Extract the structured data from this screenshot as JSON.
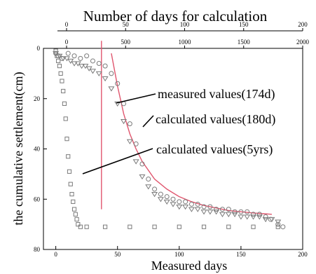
{
  "chart_data": {
    "type": "scatter",
    "title": "",
    "xlabel": "Measured days",
    "ylabel": "the cumulative settlement(cm)",
    "xlim": [
      -10,
      200
    ],
    "ylim": [
      0,
      80
    ],
    "y_inverted": true,
    "x_ticks": [
      "0",
      "50",
      "100",
      "150",
      "200"
    ],
    "y_ticks": [
      "0",
      "20",
      "40",
      "60",
      "80"
    ],
    "top_axes": [
      {
        "label": "Number of days for calculation",
        "ticks": [
          "0",
          "50",
          "100",
          "150",
          "200"
        ],
        "show_title": true
      },
      {
        "label": "",
        "ticks": [
          "0",
          "500",
          "1000",
          "1500",
          "2000"
        ],
        "show_title": false
      }
    ],
    "series": [
      {
        "name": "measured values(174d)",
        "marker": "circle",
        "x": [
          0,
          2,
          5,
          10,
          15,
          20,
          25,
          30,
          35,
          40,
          45,
          50,
          55,
          60,
          65,
          70,
          75,
          80,
          85,
          90,
          95,
          100,
          105,
          110,
          115,
          120,
          125,
          130,
          135,
          140,
          145,
          150,
          155,
          160,
          165,
          170,
          174,
          180,
          184
        ],
        "y": [
          2,
          3,
          4,
          2,
          3,
          4,
          3,
          5,
          6,
          7,
          10,
          14,
          22,
          30,
          38,
          46,
          52,
          56,
          58,
          59,
          60,
          61,
          61,
          62,
          62,
          63,
          63,
          64,
          64,
          64,
          65,
          65,
          65,
          66,
          66,
          67,
          68,
          70,
          71
        ]
      },
      {
        "name": "calculated values(180d)",
        "marker": "triangle-down",
        "x": [
          0,
          3,
          6,
          9,
          12,
          15,
          18,
          21,
          24,
          27,
          30,
          35,
          40,
          45,
          50,
          55,
          60,
          65,
          70,
          75,
          80,
          85,
          90,
          95,
          100,
          105,
          110,
          115,
          120,
          125,
          130,
          135,
          140,
          145,
          150,
          155,
          160,
          165,
          170,
          175,
          180
        ],
        "y": [
          2,
          3,
          4,
          4,
          5,
          6,
          6,
          7,
          7,
          8,
          9,
          10,
          12,
          16,
          22,
          29,
          37,
          45,
          51,
          55,
          58,
          60,
          61,
          62,
          63,
          63,
          64,
          64,
          65,
          65,
          65,
          66,
          66,
          66,
          67,
          67,
          67,
          67,
          68,
          68,
          69
        ]
      },
      {
        "name": "calculated values(5yrs)",
        "marker": "square",
        "x": [
          0,
          1,
          2,
          3,
          4,
          5,
          6,
          7,
          8,
          9,
          10,
          11,
          12,
          13,
          14,
          15,
          16,
          17,
          18,
          20,
          25,
          40,
          60,
          80,
          100,
          120,
          140,
          160,
          180
        ],
        "y": [
          1,
          3,
          5,
          7,
          10,
          13,
          17,
          22,
          28,
          36,
          43,
          49,
          54,
          58,
          61,
          64,
          66,
          68,
          70,
          71,
          71,
          71,
          71,
          71,
          71,
          71,
          71,
          71,
          71
        ]
      }
    ],
    "reference_lines": [
      {
        "type": "vertical",
        "x": 37,
        "y_range": [
          -3,
          64
        ],
        "color": "#e0566e"
      },
      {
        "type": "curve",
        "color": "#e0566e",
        "x": [
          45,
          50,
          55,
          60,
          65,
          70,
          80,
          90,
          100,
          110,
          120,
          140,
          160,
          175
        ],
        "y": [
          2,
          15,
          26,
          34,
          40,
          45,
          52,
          56,
          59,
          61,
          62.5,
          64.5,
          65.5,
          66
        ]
      }
    ],
    "colors": {
      "markers": "#7a7a7a",
      "reference": "#e0566e"
    }
  }
}
